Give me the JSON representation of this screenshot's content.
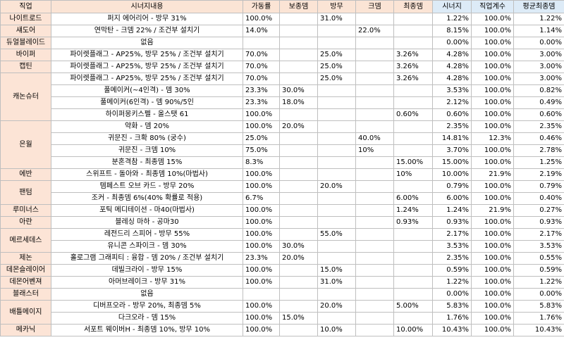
{
  "colors": {
    "header_left": "#fbe4d5",
    "header_right": "#ddebf7",
    "job_cell": "#fce4d6",
    "grid": "#bfbfbf"
  },
  "headers": [
    "직업",
    "시너지내용",
    "가동률",
    "보종뎀",
    "방무",
    "크뎀",
    "최종뎀",
    "시너지",
    "직업계수",
    "평균최종뎀"
  ],
  "rows": [
    {
      "job": "나이트로드",
      "span": 1,
      "cells": [
        "퍼지 에어리어 - 방무 31%",
        "100.0%",
        "",
        "31.0%",
        "",
        "",
        "1.22%",
        "100.0%",
        "1.22%"
      ]
    },
    {
      "job": "섀도어",
      "span": 1,
      "cells": [
        "연막탄 - 크뎀 22% / 조건부 설치기",
        "14.0%",
        "",
        "",
        "22.0%",
        "",
        "8.15%",
        "100.0%",
        "1.14%"
      ]
    },
    {
      "job": "듀얼블레이드",
      "span": 1,
      "cells": [
        "없음",
        "",
        "",
        "",
        "",
        "",
        "0.00%",
        "100.0%",
        "0.00%"
      ]
    },
    {
      "job": "바이퍼",
      "span": 1,
      "cells": [
        "파이렛플래그 - AP25%, 방무 25% / 조건부 설치기",
        "70.0%",
        "",
        "25.0%",
        "",
        "3.26%",
        "4.28%",
        "100.0%",
        "3.00%"
      ]
    },
    {
      "job": "캡틴",
      "span": 1,
      "cells": [
        "파이렛플래그 - AP25%, 방무 25% / 조건부 설치기",
        "70.0%",
        "",
        "25.0%",
        "",
        "3.26%",
        "4.28%",
        "100.0%",
        "3.00%"
      ]
    },
    {
      "job": "캐논슈터",
      "span": 4,
      "cells": [
        "파이렛플래그 - AP25%, 방무 25% / 조건부 설치기",
        "70.0%",
        "",
        "25.0%",
        "",
        "3.26%",
        "4.28%",
        "100.0%",
        "3.00%"
      ]
    },
    {
      "cells": [
        "풀메이커(~4인격) - 뎀 30%",
        "23.3%",
        "30.0%",
        "",
        "",
        "",
        "3.53%",
        "100.0%",
        "0.82%"
      ]
    },
    {
      "cells": [
        "풀메이커(6인격) - 뎀 90%/5인",
        "23.3%",
        "18.0%",
        "",
        "",
        "",
        "2.12%",
        "100.0%",
        "0.49%"
      ]
    },
    {
      "cells": [
        "하이퍼몽키스펠 - 올스탯 61",
        "100.0%",
        "",
        "",
        "",
        "0.60%",
        "0.60%",
        "100.0%",
        "0.60%"
      ]
    },
    {
      "job": "은월",
      "span": 4,
      "cells": [
        "약화 - 뎀 20%",
        "100.0%",
        "20.0%",
        "",
        "",
        "",
        "2.35%",
        "100.0%",
        "2.35%"
      ]
    },
    {
      "cells": [
        "귀문진 - 크확 80% (궁수)",
        "25.0%",
        "",
        "",
        "40.0%",
        "",
        "14.81%",
        "12.3%",
        "0.46%"
      ]
    },
    {
      "cells": [
        "귀문진 - 크뎀 10%",
        "75.0%",
        "",
        "",
        "10%",
        "",
        "3.70%",
        "100.0%",
        "2.78%"
      ]
    },
    {
      "cells": [
        "분혼격참 - 최종뎀 15%",
        "8.3%",
        "",
        "",
        "",
        "15.00%",
        "15.00%",
        "100.0%",
        "1.25%"
      ]
    },
    {
      "job": "에반",
      "span": 1,
      "cells": [
        "스위프트 - 돌아와 - 최종뎀 10%(마법사)",
        "100.0%",
        "",
        "",
        "",
        "10%",
        "10.00%",
        "21.9%",
        "2.19%"
      ]
    },
    {
      "job": "팬텀",
      "span": 2,
      "cells": [
        "템페스트 오브 카드 - 방무 20%",
        "100.0%",
        "",
        "20.0%",
        "",
        "",
        "0.79%",
        "100.0%",
        "0.79%"
      ]
    },
    {
      "cells": [
        "조커 - 최종뎀 6%(40% 확률로 적용)",
        "6.7%",
        "",
        "",
        "",
        "6.00%",
        "6.00%",
        "100.0%",
        "0.40%"
      ]
    },
    {
      "job": "루미너스",
      "span": 1,
      "cells": [
        "포틱 메디테이션 - 마40(마법사)",
        "100.0%",
        "",
        "",
        "",
        "1.24%",
        "1.24%",
        "21.9%",
        "0.27%"
      ]
    },
    {
      "job": "아란",
      "span": 1,
      "cells": [
        "블레싱 마하 - 공마30",
        "100.0%",
        "",
        "",
        "",
        "0.93%",
        "0.93%",
        "100.0%",
        "0.93%"
      ]
    },
    {
      "job": "메르세데스",
      "span": 2,
      "cells": [
        "레전드리 스피어 - 방무 55%",
        "100.0%",
        "",
        "55.0%",
        "",
        "",
        "2.17%",
        "100.0%",
        "2.17%"
      ]
    },
    {
      "cells": [
        "유니콘 스파이크 - 뎀 30%",
        "100.0%",
        "30.0%",
        "",
        "",
        "",
        "3.53%",
        "100.0%",
        "3.53%"
      ]
    },
    {
      "job": "제논",
      "span": 1,
      "cells": [
        "홀로그램 그래피티 : 융합 - 뎀 20% / 조건부 설치기",
        "23.3%",
        "20.0%",
        "",
        "",
        "",
        "2.35%",
        "100.0%",
        "0.55%"
      ]
    },
    {
      "job": "데몬슬레이어",
      "span": 1,
      "cells": [
        "데빌크라이 - 방무 15%",
        "100.0%",
        "",
        "15.0%",
        "",
        "",
        "0.59%",
        "100.0%",
        "0.59%"
      ]
    },
    {
      "job": "데몬어벤져",
      "span": 1,
      "cells": [
        "아머브레이크 - 방무 31%",
        "100.0%",
        "",
        "31.0%",
        "",
        "",
        "1.22%",
        "100.0%",
        "1.22%"
      ]
    },
    {
      "job": "블래스터",
      "span": 1,
      "cells": [
        "없음",
        "",
        "",
        "",
        "",
        "",
        "0.00%",
        "100.0%",
        "0.00%"
      ]
    },
    {
      "job": "배틀메이지",
      "span": 2,
      "cells": [
        "디버프오라 - 방무 20%, 최종뎀 5%",
        "100.0%",
        "",
        "20.0%",
        "",
        "5.00%",
        "5.83%",
        "100.0%",
        "5.83%"
      ]
    },
    {
      "cells": [
        "다크오라 - 뎀 15%",
        "100.0%",
        "15.0%",
        "",
        "",
        "",
        "1.76%",
        "100.0%",
        "1.76%"
      ]
    },
    {
      "job": "메카닉",
      "span": 1,
      "cells": [
        "서포트 웨이버H - 최종뎀 10%, 방무 10%",
        "100.0%",
        "",
        "10.0%",
        "",
        "10.00%",
        "10.43%",
        "100.0%",
        "10.43%"
      ]
    }
  ]
}
